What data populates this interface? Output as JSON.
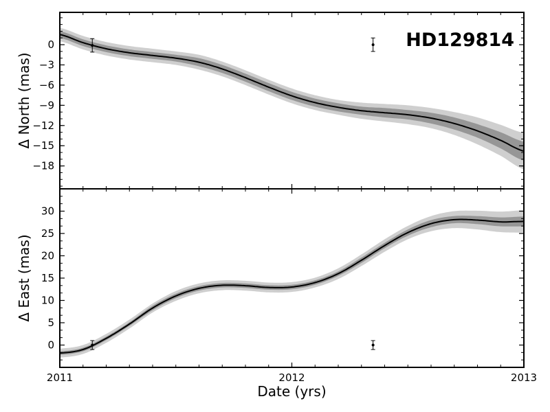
{
  "chart_data": [
    {
      "type": "line",
      "panel": "top",
      "title": "HD129814",
      "xlabel": "",
      "ylabel": "Δ North (mas)",
      "xlim": [
        2011.0,
        2013.0
      ],
      "ylim": [
        -21.4,
        4.8
      ],
      "yticks": [
        0,
        -3,
        -6,
        -9,
        -12,
        -15,
        -18
      ],
      "ytick_labels": [
        "0",
        "−3",
        "−6",
        "−9",
        "−12",
        "−15",
        "−18"
      ],
      "band_colors": {
        "outer": "#cfcfcf",
        "inner": "#969696",
        "line": "#000000"
      },
      "series": [
        {
          "x": [
            2011.0,
            2011.1,
            2011.2,
            2011.3,
            2011.4,
            2011.5,
            2011.6,
            2011.7,
            2011.8,
            2011.9,
            2012.0,
            2012.1,
            2012.2,
            2012.3,
            2012.4,
            2012.5,
            2012.6,
            2012.7,
            2012.8,
            2012.9,
            2013.0
          ],
          "y": [
            1.5,
            0.3,
            -0.6,
            -1.2,
            -1.6,
            -2.0,
            -2.6,
            -3.6,
            -4.9,
            -6.3,
            -7.6,
            -8.6,
            -9.3,
            -9.8,
            -10.1,
            -10.4,
            -10.9,
            -11.7,
            -12.8,
            -14.2,
            -15.8
          ],
          "inner_halfwidth": [
            0.5,
            0.5,
            0.5,
            0.5,
            0.5,
            0.5,
            0.6,
            0.6,
            0.6,
            0.6,
            0.6,
            0.6,
            0.6,
            0.6,
            0.7,
            0.7,
            0.8,
            0.9,
            1.0,
            1.2,
            1.4
          ],
          "outer_halfwidth": [
            1.0,
            1.0,
            1.0,
            1.0,
            1.0,
            1.0,
            1.1,
            1.1,
            1.1,
            1.1,
            1.1,
            1.1,
            1.1,
            1.2,
            1.3,
            1.4,
            1.5,
            1.7,
            2.0,
            2.3,
            2.7
          ]
        }
      ],
      "points": [
        {
          "x": 2011.14,
          "y": -0.1,
          "err": 1.0
        },
        {
          "x": 2012.35,
          "y": 0.0,
          "err": 1.0
        }
      ]
    },
    {
      "type": "line",
      "panel": "bottom",
      "xlabel": "Date (yrs)",
      "ylabel": "Δ East (mas)",
      "xlim": [
        2011.0,
        2013.0
      ],
      "ylim": [
        -5.0,
        35.0
      ],
      "yticks": [
        0,
        5,
        10,
        15,
        20,
        25,
        30
      ],
      "ytick_labels": [
        "0",
        "5",
        "10",
        "15",
        "20",
        "25",
        "30"
      ],
      "xticks": [
        2011,
        2012,
        2013
      ],
      "xtick_labels": [
        "2011",
        "2012",
        "2013"
      ],
      "series": [
        {
          "x": [
            2011.0,
            2011.1,
            2011.2,
            2011.3,
            2011.4,
            2011.5,
            2011.6,
            2011.7,
            2011.8,
            2011.9,
            2012.0,
            2012.1,
            2012.2,
            2012.3,
            2012.4,
            2012.5,
            2012.6,
            2012.7,
            2012.8,
            2012.9,
            2013.0
          ],
          "y": [
            -1.8,
            -1.0,
            1.5,
            4.7,
            8.3,
            11.0,
            12.7,
            13.4,
            13.3,
            12.9,
            13.0,
            14.0,
            16.0,
            19.0,
            22.3,
            25.2,
            27.2,
            28.1,
            28.0,
            27.6,
            27.7
          ],
          "inner_halfwidth": [
            0.4,
            0.4,
            0.4,
            0.4,
            0.5,
            0.5,
            0.5,
            0.5,
            0.5,
            0.5,
            0.5,
            0.5,
            0.5,
            0.6,
            0.6,
            0.7,
            0.8,
            0.8,
            0.9,
            1.0,
            1.1
          ],
          "outer_halfwidth": [
            1.0,
            1.0,
            1.0,
            1.0,
            1.0,
            1.1,
            1.1,
            1.1,
            1.1,
            1.1,
            1.1,
            1.1,
            1.2,
            1.3,
            1.4,
            1.5,
            1.7,
            1.9,
            2.1,
            2.3,
            2.5
          ]
        }
      ],
      "points": [
        {
          "x": 2011.14,
          "y": 0.0,
          "err": 1.0
        },
        {
          "x": 2012.35,
          "y": 0.0,
          "err": 1.0
        }
      ]
    }
  ]
}
